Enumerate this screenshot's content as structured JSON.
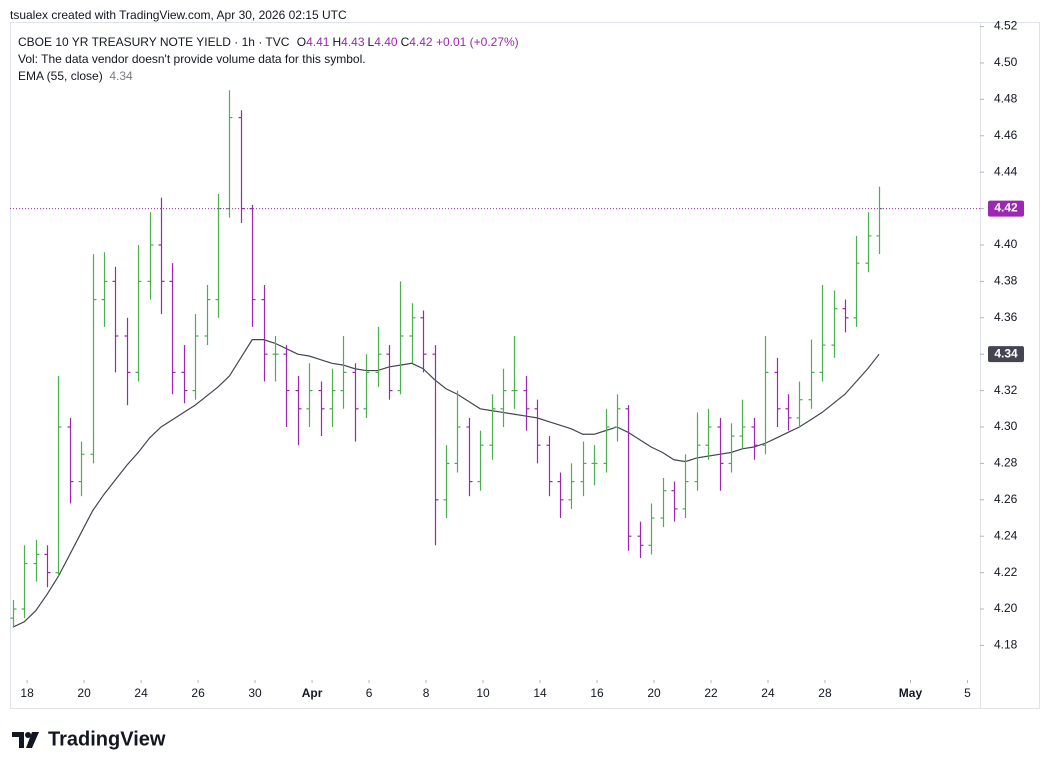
{
  "header": {
    "credit": "tsualex created with TradingView.com, Apr 30, 2026 02:15 UTC"
  },
  "legend": {
    "symbol": "CBOE 10 YR TREASURY NOTE YIELD · 1h · TVC",
    "items": [
      {
        "key": "O",
        "value": "4.41"
      },
      {
        "key": "H",
        "value": "4.43"
      },
      {
        "key": "L",
        "value": "4.40"
      },
      {
        "key": "C",
        "value": "4.42"
      }
    ],
    "change": "+0.01 (+0.27%)",
    "volume_note": "Vol: The data vendor doesn't provide volume data for this symbol."
  },
  "footer": {
    "brand": "TradingView"
  },
  "chart_data": {
    "type": "ohlc",
    "up_color": "#4caf50",
    "down_color": "#9c27b0",
    "grid": false,
    "xlim": [
      -0.6,
      33.44
    ],
    "xticks": [
      {
        "value": 0,
        "label": "18"
      },
      {
        "value": 2,
        "label": "20"
      },
      {
        "value": 4,
        "label": "24"
      },
      {
        "value": 6,
        "label": "26"
      },
      {
        "value": 8,
        "label": "30"
      },
      {
        "value": 10,
        "label": "Apr"
      },
      {
        "value": 12,
        "label": "6"
      },
      {
        "value": 14,
        "label": "8"
      },
      {
        "value": 16,
        "label": "10"
      },
      {
        "value": 18,
        "label": "14"
      },
      {
        "value": 20,
        "label": "16"
      },
      {
        "value": 22,
        "label": "20"
      },
      {
        "value": 24,
        "label": "22"
      },
      {
        "value": 26,
        "label": "24"
      },
      {
        "value": 28,
        "label": "28"
      },
      {
        "value": 31,
        "label": "May"
      },
      {
        "value": 33,
        "label": "5"
      }
    ],
    "ylim": [
      4.161,
      4.5225
    ],
    "yticks": [
      {
        "value": 4.18,
        "label": "4.18"
      },
      {
        "value": 4.2,
        "label": "4.20"
      },
      {
        "value": 4.22,
        "label": "4.22"
      },
      {
        "value": 4.24,
        "label": "4.24"
      },
      {
        "value": 4.26,
        "label": "4.26"
      },
      {
        "value": 4.28,
        "label": "4.28"
      },
      {
        "value": 4.3,
        "label": "4.30"
      },
      {
        "value": 4.32,
        "label": "4.32"
      },
      {
        "value": 4.34,
        "label": "4.34"
      },
      {
        "value": 4.36,
        "label": "4.36"
      },
      {
        "value": 4.38,
        "label": "4.38"
      },
      {
        "value": 4.4,
        "label": "4.40"
      },
      {
        "value": 4.42,
        "label": "4.42"
      },
      {
        "value": 4.44,
        "label": "4.44"
      },
      {
        "value": 4.46,
        "label": "4.46"
      },
      {
        "value": 4.48,
        "label": "4.48"
      },
      {
        "value": 4.5,
        "label": "4.50"
      },
      {
        "value": 4.52,
        "label": "4.52"
      }
    ],
    "ohlc": {
      "x": [
        -0.5,
        -0.1,
        0.3,
        0.7,
        1.1,
        1.5,
        1.9,
        2.3,
        2.7,
        3.1,
        3.5,
        3.9,
        4.3,
        4.7,
        5.1,
        5.5,
        5.9,
        6.3,
        6.7,
        7.1,
        7.5,
        7.9,
        8.3,
        8.7,
        9.1,
        9.5,
        9.9,
        10.3,
        10.7,
        11.1,
        11.5,
        11.9,
        12.3,
        12.7,
        13.1,
        13.5,
        13.9,
        14.3,
        14.7,
        15.1,
        15.5,
        15.9,
        16.3,
        16.7,
        17.1,
        17.5,
        17.9,
        18.3,
        18.7,
        19.1,
        19.5,
        19.9,
        20.3,
        20.7,
        21.1,
        21.5,
        21.9,
        22.3,
        22.7,
        23.1,
        23.5,
        23.9,
        24.3,
        24.7,
        25.1,
        25.5,
        25.9,
        26.3,
        26.7,
        27.1,
        27.5,
        27.9,
        28.3,
        28.7,
        29.1,
        29.5,
        29.9
      ],
      "open": [
        4.195,
        4.2,
        4.225,
        4.23,
        4.22,
        4.3,
        4.27,
        4.285,
        4.37,
        4.38,
        4.35,
        4.33,
        4.38,
        4.4,
        4.38,
        4.33,
        4.32,
        4.35,
        4.37,
        4.42,
        4.47,
        4.42,
        4.37,
        4.34,
        4.34,
        4.32,
        4.31,
        4.32,
        4.31,
        4.32,
        4.33,
        4.31,
        4.33,
        4.34,
        4.32,
        4.35,
        4.36,
        4.34,
        4.26,
        4.28,
        4.3,
        4.27,
        4.29,
        4.31,
        4.32,
        4.32,
        4.31,
        4.29,
        4.27,
        4.26,
        4.27,
        4.28,
        4.28,
        4.3,
        4.31,
        4.24,
        4.235,
        4.25,
        4.265,
        4.255,
        4.27,
        4.29,
        4.3,
        4.28,
        4.295,
        4.3,
        4.29,
        4.33,
        4.31,
        4.305,
        4.315,
        4.33,
        4.345,
        4.365,
        4.36,
        4.39,
        4.405
      ],
      "high": [
        4.205,
        4.235,
        4.238,
        4.235,
        4.328,
        4.305,
        4.292,
        4.395,
        4.396,
        4.388,
        4.36,
        4.4,
        4.418,
        4.426,
        4.39,
        4.345,
        4.362,
        4.378,
        4.428,
        4.485,
        4.474,
        4.422,
        4.378,
        4.35,
        4.345,
        4.328,
        4.335,
        4.325,
        4.332,
        4.35,
        4.335,
        4.34,
        4.355,
        4.345,
        4.38,
        4.368,
        4.364,
        4.345,
        4.29,
        4.32,
        4.305,
        4.298,
        4.318,
        4.332,
        4.35,
        4.328,
        4.315,
        4.295,
        4.275,
        4.28,
        4.292,
        4.29,
        4.31,
        4.318,
        4.312,
        4.248,
        4.258,
        4.272,
        4.27,
        4.285,
        4.308,
        4.31,
        4.305,
        4.302,
        4.315,
        4.305,
        4.35,
        4.338,
        4.318,
        4.325,
        4.348,
        4.378,
        4.375,
        4.37,
        4.405,
        4.418,
        4.432
      ],
      "low": [
        4.19,
        4.195,
        4.215,
        4.212,
        4.218,
        4.258,
        4.262,
        4.28,
        4.355,
        4.33,
        4.312,
        4.325,
        4.37,
        4.362,
        4.318,
        4.313,
        4.315,
        4.345,
        4.36,
        4.415,
        4.412,
        4.355,
        4.325,
        4.325,
        4.3,
        4.29,
        4.3,
        4.295,
        4.3,
        4.31,
        4.292,
        4.305,
        4.322,
        4.315,
        4.318,
        4.335,
        4.33,
        4.235,
        4.25,
        4.275,
        4.262,
        4.265,
        4.282,
        4.3,
        4.31,
        4.298,
        4.28,
        4.262,
        4.25,
        4.255,
        4.262,
        4.268,
        4.275,
        4.292,
        4.232,
        4.228,
        4.23,
        4.245,
        4.248,
        4.25,
        4.265,
        4.282,
        4.265,
        4.275,
        4.288,
        4.282,
        4.285,
        4.3,
        4.298,
        4.3,
        4.31,
        4.325,
        4.338,
        4.352,
        4.355,
        4.385,
        4.395
      ],
      "close": [
        4.2,
        4.225,
        4.23,
        4.22,
        4.3,
        4.27,
        4.285,
        4.37,
        4.38,
        4.35,
        4.33,
        4.38,
        4.4,
        4.38,
        4.33,
        4.32,
        4.35,
        4.37,
        4.42,
        4.47,
        4.42,
        4.37,
        4.34,
        4.34,
        4.32,
        4.31,
        4.32,
        4.31,
        4.32,
        4.33,
        4.31,
        4.33,
        4.34,
        4.32,
        4.35,
        4.36,
        4.34,
        4.26,
        4.28,
        4.3,
        4.27,
        4.29,
        4.31,
        4.32,
        4.32,
        4.31,
        4.29,
        4.27,
        4.26,
        4.27,
        4.28,
        4.28,
        4.3,
        4.31,
        4.24,
        4.235,
        4.25,
        4.265,
        4.255,
        4.27,
        4.29,
        4.3,
        4.28,
        4.295,
        4.3,
        4.29,
        4.33,
        4.31,
        4.305,
        4.315,
        4.33,
        4.345,
        4.365,
        4.36,
        4.39,
        4.405,
        4.42
      ]
    },
    "ema": {
      "name": "EMA (55, close)",
      "color": "#434651",
      "values": [
        4.19,
        4.193,
        4.199,
        4.208,
        4.218,
        4.23,
        4.242,
        4.254,
        4.263,
        4.271,
        4.279,
        4.286,
        4.294,
        4.3,
        4.304,
        4.308,
        4.312,
        4.317,
        4.322,
        4.328,
        4.338,
        4.348,
        4.348,
        4.346,
        4.343,
        4.34,
        4.339,
        4.337,
        4.335,
        4.334,
        4.332,
        4.331,
        4.331,
        4.333,
        4.334,
        4.335,
        4.332,
        4.326,
        4.321,
        4.318,
        4.314,
        4.31,
        4.309,
        4.308,
        4.307,
        4.306,
        4.305,
        4.303,
        4.301,
        4.299,
        4.296,
        4.296,
        4.298,
        4.3,
        4.297,
        4.293,
        4.289,
        4.286,
        4.282,
        4.281,
        4.283,
        4.284,
        4.285,
        4.286,
        4.288,
        4.289,
        4.291,
        4.294,
        4.297,
        4.3,
        4.304,
        4.308,
        4.313,
        4.318,
        4.325,
        4.332,
        4.34
      ]
    }
  }
}
